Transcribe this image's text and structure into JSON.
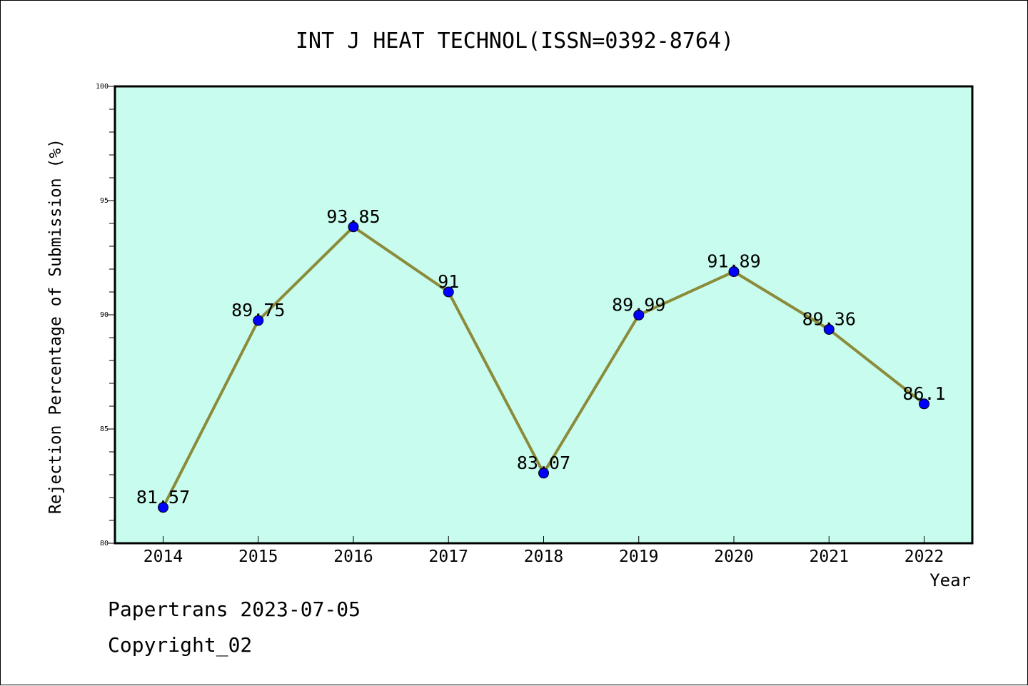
{
  "footer": {
    "line1": "Papertrans 2023-07-05",
    "line2": "Copyright_02"
  },
  "colors": {
    "plot_background": "#c8fcee",
    "line": "#8b8b3a",
    "marker": "#0000ff"
  },
  "chart_data": {
    "type": "line",
    "title": "INT J HEAT TECHNOL(ISSN=0392-8764)",
    "xlabel": "Year",
    "ylabel": "Rejection Percentage of Submission (%)",
    "ylim": [
      80,
      100
    ],
    "yticks": [
      "80",
      "85",
      "90",
      "95",
      "100"
    ],
    "categories": [
      "2014",
      "2015",
      "2016",
      "2017",
      "2018",
      "2019",
      "2020",
      "2021",
      "2022"
    ],
    "values": [
      81.57,
      89.75,
      93.85,
      91,
      83.07,
      89.99,
      91.89,
      89.36,
      86.1
    ],
    "labels": [
      "81.57",
      "89.75",
      "93.85",
      "91",
      "83.07",
      "89.99",
      "91.89",
      "89.36",
      "86.1"
    ],
    "grid": false,
    "legend": "none"
  }
}
